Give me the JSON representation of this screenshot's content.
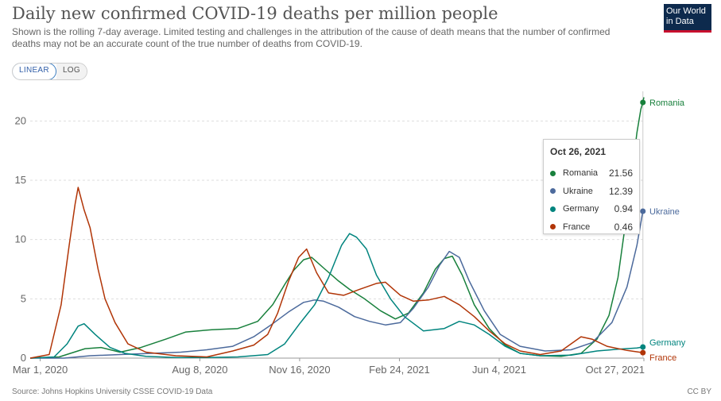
{
  "header": {
    "title": "Daily new confirmed COVID-19 deaths per million people",
    "subtitle": "Shown is the rolling 7-day average. Limited testing and challenges in the attribution of the cause of death means that the number of confirmed deaths may not be an accurate count of the true number of deaths from COVID-19.",
    "logo_line1": "Our World",
    "logo_line2": "in Data"
  },
  "controls": {
    "linear_label": "LINEAR",
    "log_label": "LOG",
    "active": "LINEAR"
  },
  "tooltip": {
    "date": "Oct 26, 2021",
    "rows": [
      {
        "name": "Romania",
        "value": "21.56",
        "color": "#18803c"
      },
      {
        "name": "Ukraine",
        "value": "12.39",
        "color": "#4c6a9c"
      },
      {
        "name": "Germany",
        "value": "0.94",
        "color": "#00847e"
      },
      {
        "name": "France",
        "value": "0.46",
        "color": "#b13507"
      }
    ]
  },
  "footer": {
    "source": "Source: Johns Hopkins University CSSE COVID-19 Data",
    "license": "CC BY"
  },
  "chart_data": {
    "type": "line",
    "y_ticks": [
      0,
      5,
      10,
      15,
      20
    ],
    "ylim": [
      0,
      22.5
    ],
    "xlim": [
      "2020-02-20",
      "2021-10-27"
    ],
    "x_ticks": [
      {
        "date": "2020-03-01",
        "label": "Mar 1, 2020"
      },
      {
        "date": "2020-08-08",
        "label": "Aug 8, 2020"
      },
      {
        "date": "2020-11-16",
        "label": "Nov 16, 2020"
      },
      {
        "date": "2021-02-24",
        "label": "Feb 24, 2021"
      },
      {
        "date": "2021-06-04",
        "label": "Jun 4, 2021"
      },
      {
        "date": "2021-10-27",
        "label": "Oct 27, 2021"
      }
    ],
    "grid": "horizontal dashed",
    "series": [
      {
        "name": "Romania",
        "color": "#18803c",
        "points": [
          [
            "2020-02-20",
            0
          ],
          [
            "2020-03-20",
            0.1
          ],
          [
            "2020-04-15",
            0.8
          ],
          [
            "2020-05-01",
            0.9
          ],
          [
            "2020-05-20",
            0.5
          ],
          [
            "2020-06-10",
            0.9
          ],
          [
            "2020-07-05",
            1.6
          ],
          [
            "2020-07-25",
            2.2
          ],
          [
            "2020-08-20",
            2.4
          ],
          [
            "2020-09-15",
            2.5
          ],
          [
            "2020-10-05",
            3.1
          ],
          [
            "2020-10-20",
            4.5
          ],
          [
            "2020-11-01",
            6.2
          ],
          [
            "2020-11-10",
            7.4
          ],
          [
            "2020-11-20",
            8.3
          ],
          [
            "2020-11-28",
            8.5
          ],
          [
            "2020-12-10",
            7.6
          ],
          [
            "2020-12-25",
            6.5
          ],
          [
            "2021-01-05",
            5.8
          ],
          [
            "2021-01-20",
            5.0
          ],
          [
            "2021-02-05",
            4.0
          ],
          [
            "2021-02-20",
            3.3
          ],
          [
            "2021-03-05",
            3.8
          ],
          [
            "2021-03-20",
            5.5
          ],
          [
            "2021-04-01",
            7.5
          ],
          [
            "2021-04-10",
            8.4
          ],
          [
            "2021-04-18",
            8.6
          ],
          [
            "2021-04-28",
            7.0
          ],
          [
            "2021-05-10",
            4.5
          ],
          [
            "2021-05-25",
            2.5
          ],
          [
            "2021-06-10",
            1.1
          ],
          [
            "2021-06-25",
            0.4
          ],
          [
            "2021-07-15",
            0.2
          ],
          [
            "2021-08-05",
            0.15
          ],
          [
            "2021-08-25",
            0.4
          ],
          [
            "2021-09-10",
            1.6
          ],
          [
            "2021-09-22",
            3.6
          ],
          [
            "2021-10-01",
            6.8
          ],
          [
            "2021-10-08",
            11.0
          ],
          [
            "2021-10-15",
            15.5
          ],
          [
            "2021-10-20",
            19.0
          ],
          [
            "2021-10-24",
            21.0
          ],
          [
            "2021-10-26",
            21.56
          ],
          [
            "2021-10-27",
            22.0
          ]
        ]
      },
      {
        "name": "Ukraine",
        "color": "#4c6a9c",
        "points": [
          [
            "2020-02-20",
            0
          ],
          [
            "2020-03-25",
            0
          ],
          [
            "2020-04-20",
            0.2
          ],
          [
            "2020-05-20",
            0.3
          ],
          [
            "2020-06-20",
            0.4
          ],
          [
            "2020-07-20",
            0.5
          ],
          [
            "2020-08-15",
            0.7
          ],
          [
            "2020-09-10",
            1.0
          ],
          [
            "2020-10-01",
            1.8
          ],
          [
            "2020-10-20",
            2.9
          ],
          [
            "2020-11-05",
            3.9
          ],
          [
            "2020-11-20",
            4.7
          ],
          [
            "2020-12-01",
            4.9
          ],
          [
            "2020-12-10",
            4.8
          ],
          [
            "2020-12-25",
            4.3
          ],
          [
            "2021-01-10",
            3.5
          ],
          [
            "2021-01-25",
            3.1
          ],
          [
            "2021-02-10",
            2.8
          ],
          [
            "2021-02-25",
            3.0
          ],
          [
            "2021-03-10",
            4.2
          ],
          [
            "2021-03-25",
            6.0
          ],
          [
            "2021-04-05",
            7.8
          ],
          [
            "2021-04-15",
            9.0
          ],
          [
            "2021-04-25",
            8.5
          ],
          [
            "2021-05-05",
            6.5
          ],
          [
            "2021-05-20",
            4.0
          ],
          [
            "2021-06-05",
            2.0
          ],
          [
            "2021-06-25",
            1.0
          ],
          [
            "2021-07-20",
            0.6
          ],
          [
            "2021-08-15",
            0.7
          ],
          [
            "2021-09-05",
            1.3
          ],
          [
            "2021-09-25",
            3.0
          ],
          [
            "2021-10-10",
            6.0
          ],
          [
            "2021-10-20",
            9.5
          ],
          [
            "2021-10-26",
            12.39
          ],
          [
            "2021-10-27",
            12.4
          ]
        ]
      },
      {
        "name": "Germany",
        "color": "#00847e",
        "points": [
          [
            "2020-02-20",
            0
          ],
          [
            "2020-03-15",
            0.1
          ],
          [
            "2020-03-28",
            1.2
          ],
          [
            "2020-04-08",
            2.7
          ],
          [
            "2020-04-14",
            2.9
          ],
          [
            "2020-04-25",
            2.0
          ],
          [
            "2020-05-10",
            0.9
          ],
          [
            "2020-05-25",
            0.4
          ],
          [
            "2020-06-15",
            0.15
          ],
          [
            "2020-07-15",
            0.05
          ],
          [
            "2020-08-15",
            0.05
          ],
          [
            "2020-09-15",
            0.1
          ],
          [
            "2020-10-15",
            0.3
          ],
          [
            "2020-11-01",
            1.2
          ],
          [
            "2020-11-16",
            2.9
          ],
          [
            "2020-12-01",
            4.5
          ],
          [
            "2020-12-15",
            6.8
          ],
          [
            "2020-12-28",
            9.5
          ],
          [
            "2021-01-05",
            10.5
          ],
          [
            "2021-01-12",
            10.2
          ],
          [
            "2021-01-22",
            9.2
          ],
          [
            "2021-02-01",
            7.0
          ],
          [
            "2021-02-15",
            5.0
          ],
          [
            "2021-03-01",
            3.5
          ],
          [
            "2021-03-20",
            2.3
          ],
          [
            "2021-04-10",
            2.5
          ],
          [
            "2021-04-25",
            3.1
          ],
          [
            "2021-05-10",
            2.8
          ],
          [
            "2021-05-25",
            2.0
          ],
          [
            "2021-06-10",
            1.0
          ],
          [
            "2021-06-25",
            0.4
          ],
          [
            "2021-07-15",
            0.2
          ],
          [
            "2021-08-15",
            0.25
          ],
          [
            "2021-09-10",
            0.6
          ],
          [
            "2021-10-01",
            0.75
          ],
          [
            "2021-10-20",
            0.85
          ],
          [
            "2021-10-26",
            0.94
          ],
          [
            "2021-10-27",
            0.95
          ]
        ]
      },
      {
        "name": "France",
        "color": "#b13507",
        "points": [
          [
            "2020-02-20",
            0
          ],
          [
            "2020-03-10",
            0.3
          ],
          [
            "2020-03-22",
            4.5
          ],
          [
            "2020-03-30",
            9.5
          ],
          [
            "2020-04-05",
            13.0
          ],
          [
            "2020-04-08",
            14.4
          ],
          [
            "2020-04-14",
            12.5
          ],
          [
            "2020-04-20",
            11.0
          ],
          [
            "2020-04-28",
            7.5
          ],
          [
            "2020-05-05",
            5.0
          ],
          [
            "2020-05-15",
            3.0
          ],
          [
            "2020-05-28",
            1.2
          ],
          [
            "2020-06-15",
            0.5
          ],
          [
            "2020-07-15",
            0.2
          ],
          [
            "2020-08-15",
            0.1
          ],
          [
            "2020-09-10",
            0.6
          ],
          [
            "2020-10-01",
            1.1
          ],
          [
            "2020-10-15",
            2.0
          ],
          [
            "2020-10-25",
            3.8
          ],
          [
            "2020-11-05",
            6.5
          ],
          [
            "2020-11-15",
            8.5
          ],
          [
            "2020-11-23",
            9.2
          ],
          [
            "2020-12-03",
            7.2
          ],
          [
            "2020-12-15",
            5.5
          ],
          [
            "2020-12-30",
            5.3
          ],
          [
            "2021-01-15",
            5.8
          ],
          [
            "2021-02-01",
            6.3
          ],
          [
            "2021-02-10",
            6.4
          ],
          [
            "2021-02-25",
            5.3
          ],
          [
            "2021-03-10",
            4.8
          ],
          [
            "2021-03-25",
            4.9
          ],
          [
            "2021-04-10",
            5.2
          ],
          [
            "2021-04-25",
            4.5
          ],
          [
            "2021-05-10",
            3.5
          ],
          [
            "2021-05-25",
            2.3
          ],
          [
            "2021-06-10",
            1.2
          ],
          [
            "2021-06-25",
            0.6
          ],
          [
            "2021-07-15",
            0.3
          ],
          [
            "2021-08-05",
            0.6
          ],
          [
            "2021-08-25",
            1.8
          ],
          [
            "2021-09-05",
            1.6
          ],
          [
            "2021-09-20",
            1.0
          ],
          [
            "2021-10-10",
            0.65
          ],
          [
            "2021-10-26",
            0.46
          ],
          [
            "2021-10-27",
            0.45
          ]
        ]
      }
    ],
    "end_labels": [
      {
        "name": "Romania",
        "value": 21.56
      },
      {
        "name": "Ukraine",
        "value": 12.39
      },
      {
        "name": "Germany",
        "value": 0.94
      },
      {
        "name": "France",
        "value": 0.46
      }
    ]
  }
}
